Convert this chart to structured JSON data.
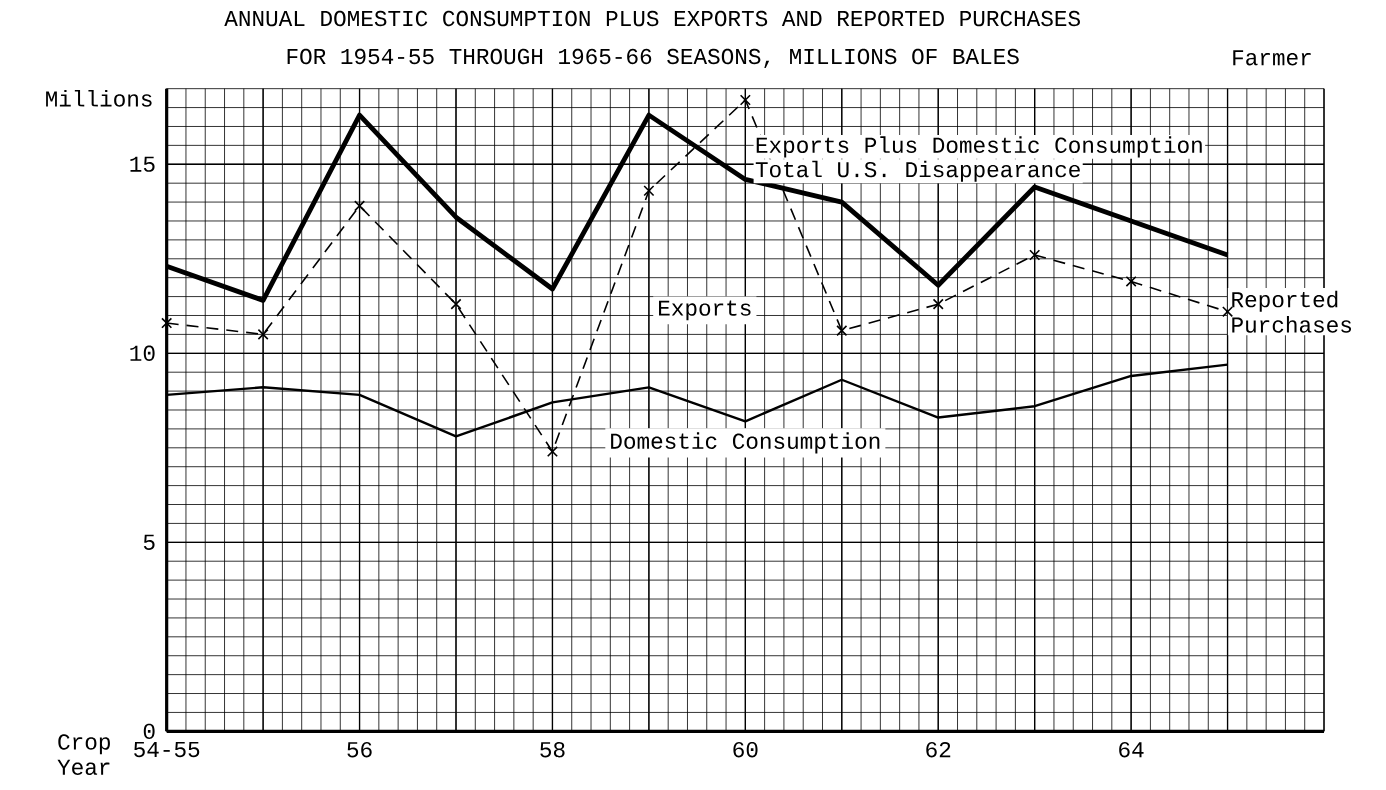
{
  "chart_data": {
    "type": "line",
    "title": "ANNUAL DOMESTIC CONSUMPTION PLUS EXPORTS AND REPORTED PURCHASES",
    "subtitle": "FOR 1954-55 THROUGH 1965-66 SEASONS, MILLIONS OF BALES",
    "xlabel": "Crop Year",
    "ylabel": "Millions",
    "categories": [
      "54-55",
      null,
      "56",
      null,
      "58",
      null,
      "60",
      null,
      "62",
      null,
      "64",
      null
    ],
    "series": [
      {
        "name": "Total U.S. Disappearance",
        "color": "#000000",
        "line_style": "solid",
        "marker": "none",
        "values": [
          12.3,
          11.4,
          16.3,
          13.6,
          11.7,
          16.3,
          14.6,
          14.0,
          11.8,
          14.4,
          13.5,
          12.6
        ]
      },
      {
        "name": "Reported Purchases",
        "color": "#000000",
        "line_style": "dashed",
        "marker": "cross",
        "values": [
          10.8,
          10.5,
          13.9,
          11.3,
          7.4,
          14.3,
          16.7,
          10.6,
          11.3,
          12.6,
          11.9,
          11.1
        ]
      },
      {
        "name": "Domestic Consumption",
        "color": "#000000",
        "line_style": "solid",
        "marker": "none",
        "values": [
          8.9,
          9.1,
          8.9,
          7.8,
          8.7,
          9.1,
          8.2,
          9.3,
          8.3,
          8.6,
          9.4,
          9.7
        ]
      }
    ],
    "annotations": [
      "Exports Plus Domestic Consumption",
      "Exports",
      "Farmer"
    ],
    "ylim": [
      0,
      17
    ],
    "yticks": [
      0,
      5,
      10,
      15
    ],
    "grid": true,
    "legend": false
  }
}
